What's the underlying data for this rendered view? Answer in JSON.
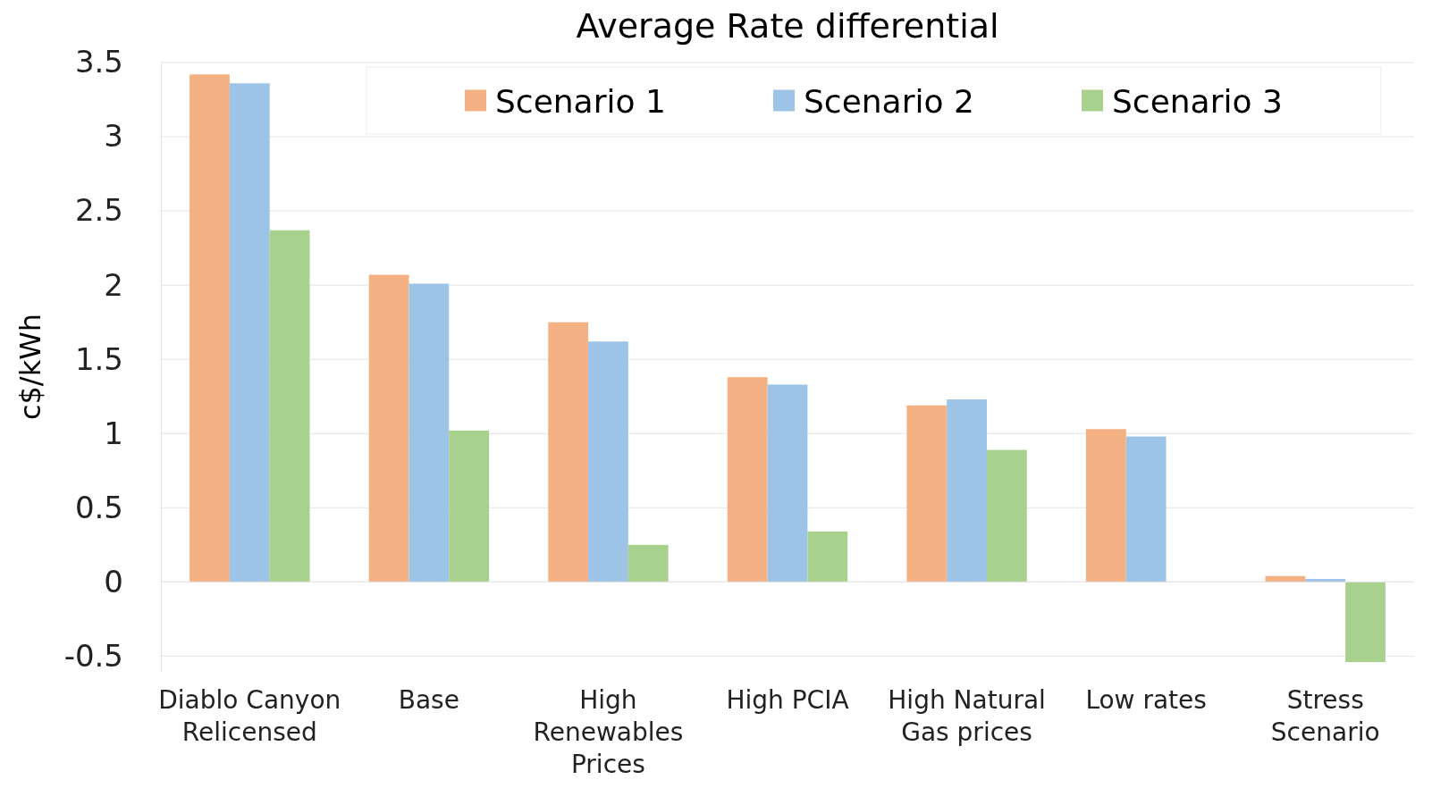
{
  "chart_data": {
    "type": "bar",
    "title": "Average Rate differential",
    "ylabel": "c$/kWh",
    "categories": [
      "Diablo Canyon Relicensed",
      "Base",
      "High Renewables Prices",
      "High PCIA",
      "High Natural Gas prices",
      "Low rates",
      "Stress Scenario"
    ],
    "series": [
      {
        "name": "Scenario 1",
        "color": "#f4b183",
        "values": [
          3.42,
          2.07,
          1.75,
          1.38,
          1.19,
          1.03,
          0.04
        ]
      },
      {
        "name": "Scenario 2",
        "color": "#9dc3e6",
        "values": [
          3.36,
          2.01,
          1.62,
          1.33,
          1.23,
          0.98,
          0.02
        ]
      },
      {
        "name": "Scenario 3",
        "color": "#a9d18e",
        "values": [
          2.37,
          1.02,
          0.25,
          0.34,
          0.89,
          0,
          -0.54
        ]
      }
    ],
    "ylim": [
      -0.6,
      3.5
    ],
    "yticks": [
      -0.5,
      0,
      0.5,
      1,
      1.5,
      2,
      2.5,
      3,
      3.5
    ],
    "grid": "y",
    "legend": "top right"
  }
}
